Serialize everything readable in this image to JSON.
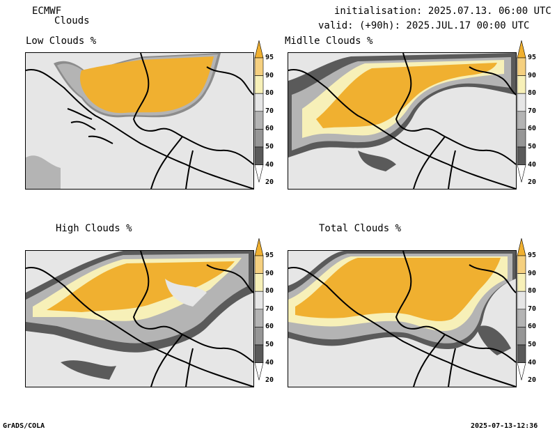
{
  "header": {
    "model": "ECMWF",
    "product": "Clouds",
    "init": "initialisation: 2025.07.13. 06:00 UTC",
    "valid": "valid: (+90h): 2025.JUL.17 00:00 UTC"
  },
  "panels": {
    "low": {
      "title": "Low Clouds %"
    },
    "mid": {
      "title": "Midlle Clouds %"
    },
    "high": {
      "title": "High Clouds %"
    },
    "total": {
      "title": "Total Clouds %"
    }
  },
  "colorbar": {
    "levels": [
      "95",
      "90",
      "80",
      "70",
      "60",
      "50",
      "40",
      "20"
    ],
    "colors": [
      "#f0b030",
      "#f5d080",
      "#f7f0b8",
      "#e6e6e6",
      "#b4b4b4",
      "#969696",
      "#5a5a5a",
      "#ffffff"
    ]
  },
  "footer": {
    "software": "GrADS/COLA",
    "timestamp": "2025-07-13-12:36"
  }
}
